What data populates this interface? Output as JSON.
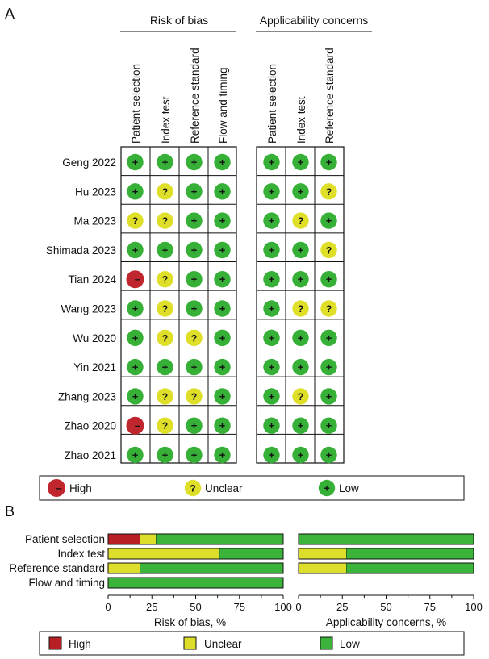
{
  "panel_a": {
    "label": "A",
    "rob_header": "Risk of bias",
    "app_header": "Applicability concerns",
    "rob_columns": [
      "Patient selection",
      "Index test",
      "Reference standard",
      "Flow and timing"
    ],
    "app_columns": [
      "Patient selection",
      "Index test",
      "Reference standard"
    ],
    "studies": [
      "Geng 2022",
      "Hu 2023",
      "Ma 2023",
      "Shimada 2023",
      "Tian 2024",
      "Wang 2023",
      "Wu 2020",
      "Yin 2021",
      "Zhang 2023",
      "Zhao 2020",
      "Zhao 2021"
    ],
    "rob_grid": [
      [
        "low",
        "low",
        "low",
        "low"
      ],
      [
        "low",
        "unclear",
        "low",
        "low"
      ],
      [
        "unclear",
        "unclear",
        "low",
        "low"
      ],
      [
        "low",
        "low",
        "low",
        "low"
      ],
      [
        "high",
        "unclear",
        "low",
        "low"
      ],
      [
        "low",
        "unclear",
        "low",
        "low"
      ],
      [
        "low",
        "unclear",
        "unclear",
        "low"
      ],
      [
        "low",
        "low",
        "low",
        "low"
      ],
      [
        "low",
        "unclear",
        "unclear",
        "low"
      ],
      [
        "high",
        "unclear",
        "low",
        "low"
      ],
      [
        "low",
        "low",
        "low",
        "low"
      ]
    ],
    "app_grid": [
      [
        "low",
        "low",
        "low"
      ],
      [
        "low",
        "low",
        "unclear"
      ],
      [
        "low",
        "unclear",
        "low"
      ],
      [
        "low",
        "low",
        "unclear"
      ],
      [
        "low",
        "low",
        "low"
      ],
      [
        "low",
        "unclear",
        "unclear"
      ],
      [
        "low",
        "low",
        "low"
      ],
      [
        "low",
        "low",
        "low"
      ],
      [
        "low",
        "unclear",
        "low"
      ],
      [
        "low",
        "low",
        "low"
      ],
      [
        "low",
        "low",
        "low"
      ]
    ],
    "symbols": {
      "high": "–",
      "unclear": "?",
      "low": "+"
    },
    "legend": [
      {
        "key": "high",
        "label": "High"
      },
      {
        "key": "unclear",
        "label": "Unclear"
      },
      {
        "key": "low",
        "label": "Low"
      }
    ]
  },
  "chart_data": {
    "type": "bar",
    "orientation": "horizontal",
    "stacked": true,
    "panel_label": "B",
    "categories": [
      "Patient selection",
      "Index test",
      "Reference standard",
      "Flow and timing"
    ],
    "xlim": [
      0,
      100
    ],
    "xticks": [
      "0",
      "25",
      "50",
      "75",
      "100"
    ],
    "charts": [
      {
        "xlabel": "Risk of bias, %",
        "series": [
          {
            "name": "High",
            "key": "high",
            "values": [
              18.2,
              0,
              0,
              0
            ]
          },
          {
            "name": "Unclear",
            "key": "unclear",
            "values": [
              9.1,
              63.6,
              18.2,
              0
            ]
          },
          {
            "name": "Low",
            "key": "low",
            "values": [
              72.7,
              36.4,
              81.8,
              100
            ]
          }
        ]
      },
      {
        "xlabel": "Applicability concerns, %",
        "categories": [
          "Patient selection",
          "Index test",
          "Reference standard"
        ],
        "series": [
          {
            "name": "High",
            "key": "high",
            "values": [
              0,
              0,
              0
            ]
          },
          {
            "name": "Unclear",
            "key": "unclear",
            "values": [
              0,
              27.3,
              27.3
            ]
          },
          {
            "name": "Low",
            "key": "low",
            "values": [
              100,
              72.7,
              72.7
            ]
          }
        ]
      }
    ],
    "legend": [
      "High",
      "Unclear",
      "Low"
    ]
  },
  "colors": {
    "high": "#c0262d",
    "unclear": "#dfdf2a",
    "low": "#36b036",
    "high_bar": "#b81f24",
    "unclear_bar": "#dddd2c",
    "low_bar": "#3cb43c"
  }
}
